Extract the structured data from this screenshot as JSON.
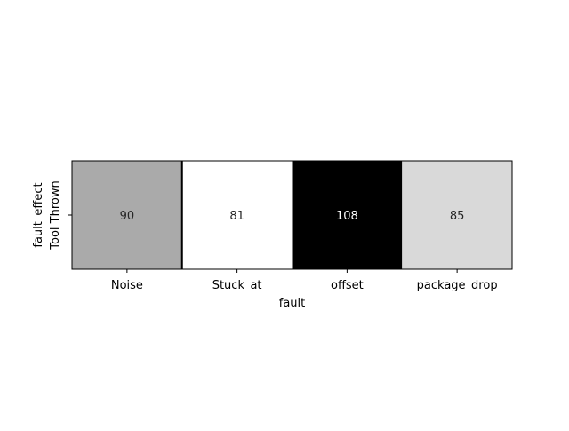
{
  "chart_data": {
    "type": "heatmap",
    "title": "",
    "xlabel": "fault",
    "ylabel": "fault_effect",
    "x_categories": [
      "Noise",
      "Stuck_at",
      "offset",
      "package_drop"
    ],
    "y_categories": [
      "Tool Thrown"
    ],
    "values": [
      [
        90,
        81,
        108,
        85
      ]
    ],
    "color_scale": {
      "min": 81,
      "max": 108,
      "low_color": "#ffffff",
      "high_color": "#000000"
    },
    "grid": false,
    "legend": "none"
  }
}
